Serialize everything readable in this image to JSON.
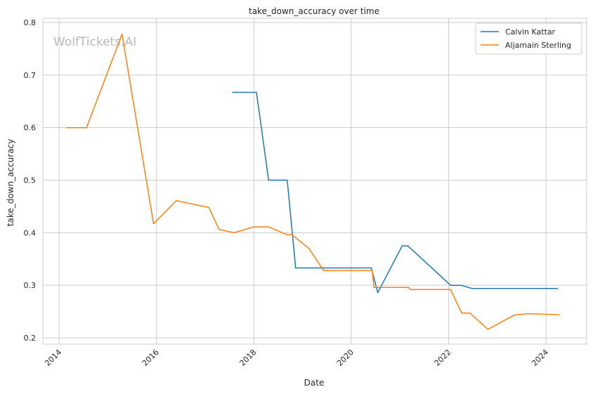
{
  "chart_data": {
    "type": "line",
    "title": "take_down_accuracy over time",
    "xlabel": "Date",
    "ylabel": "take_down_accuracy",
    "watermark": "WolfTickets.AI",
    "xlim": [
      "2013-09-01",
      "2024-11-01"
    ],
    "ylim": [
      0.188,
      0.808
    ],
    "x_ticks": [
      "2014",
      "2016",
      "2018",
      "2020",
      "2022",
      "2024"
    ],
    "y_ticks": [
      "0.2",
      "0.3",
      "0.4",
      "0.5",
      "0.6",
      "0.7",
      "0.8"
    ],
    "grid": true,
    "legend_position": "top-right",
    "series": [
      {
        "name": "Calvin Kattar",
        "color": "#1f77b4",
        "points": [
          [
            "2017-07-22",
            0.667
          ],
          [
            "2018-01-20",
            0.667
          ],
          [
            "2018-04-21",
            0.5
          ],
          [
            "2018-09-08",
            0.5
          ],
          [
            "2018-11-10",
            0.333
          ],
          [
            "2020-05-30",
            0.333
          ],
          [
            "2020-07-18",
            0.286
          ],
          [
            "2021-01-17",
            0.375
          ],
          [
            "2021-03-01",
            0.375
          ],
          [
            "2022-01-15",
            0.3
          ],
          [
            "2022-04-02",
            0.3
          ],
          [
            "2022-06-25",
            0.294
          ],
          [
            "2024-03-30",
            0.294
          ]
        ]
      },
      {
        "name": "Aljamain Sterling",
        "color": "#ff7f0e",
        "points": [
          [
            "2014-02-22",
            0.6
          ],
          [
            "2014-07-26",
            0.6
          ],
          [
            "2015-04-18",
            0.778
          ],
          [
            "2015-12-10",
            0.417
          ],
          [
            "2016-05-29",
            0.461
          ],
          [
            "2017-01-28",
            0.448
          ],
          [
            "2017-04-15",
            0.406
          ],
          [
            "2017-08-05",
            0.4
          ],
          [
            "2017-12-30",
            0.411
          ],
          [
            "2018-04-21",
            0.411
          ],
          [
            "2018-09-08",
            0.396
          ],
          [
            "2018-10-15",
            0.396
          ],
          [
            "2019-02-17",
            0.37
          ],
          [
            "2019-06-08",
            0.328
          ],
          [
            "2020-06-06",
            0.328
          ],
          [
            "2020-06-20",
            0.296
          ],
          [
            "2021-03-06",
            0.296
          ],
          [
            "2021-03-20",
            0.292
          ],
          [
            "2022-01-15",
            0.292
          ],
          [
            "2022-04-09",
            0.247
          ],
          [
            "2022-06-10",
            0.247
          ],
          [
            "2022-10-22",
            0.216
          ],
          [
            "2023-05-06",
            0.243
          ],
          [
            "2023-08-19",
            0.246
          ],
          [
            "2024-04-13",
            0.244
          ]
        ]
      }
    ]
  }
}
